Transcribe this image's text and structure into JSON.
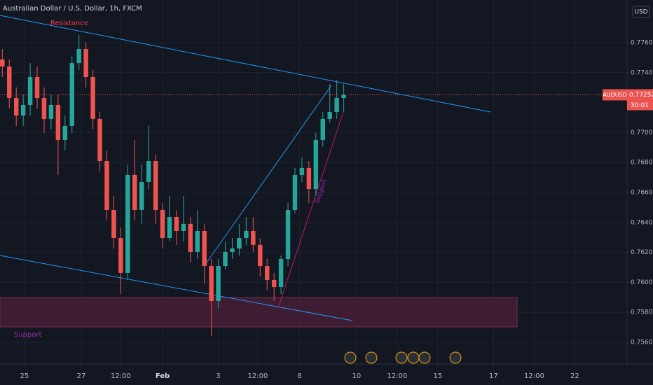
{
  "chart_data": {
    "type": "candlestick",
    "title": "Australian Dollar / U.S. Dollar, 1h, FXCM",
    "currency": "USD",
    "symbol": "AUDUSD",
    "last_price": 0.77252,
    "countdown": "30:01",
    "annotations": [
      "Resistance",
      "Support",
      "Support"
    ],
    "up_color": "#26a69a",
    "down_color": "#ef5350",
    "grid": true,
    "xlim": [
      0,
      540
    ],
    "ylim": [
      0.75455,
      0.77885
    ],
    "xticks": [
      {
        "value": 21,
        "label": "25"
      },
      {
        "value": 70,
        "label": "27"
      },
      {
        "value": 104,
        "label": "12:00"
      },
      {
        "value": 140,
        "label": "Feb"
      },
      {
        "value": 188,
        "label": "3"
      },
      {
        "value": 222,
        "label": "12:00"
      },
      {
        "value": 258,
        "label": "8"
      },
      {
        "value": 307,
        "label": "10"
      },
      {
        "value": 342,
        "label": "12:00"
      },
      {
        "value": 377,
        "label": "15"
      },
      {
        "value": 425,
        "label": "17"
      },
      {
        "value": 460,
        "label": "12:00"
      },
      {
        "value": 495,
        "label": "22"
      }
    ],
    "yticks": [
      {
        "value": 0.776,
        "label": "0.77600"
      },
      {
        "value": 0.774,
        "label": "0.77400"
      },
      {
        "value": 0.77,
        "label": "0.77000"
      },
      {
        "value": 0.768,
        "label": "0.76800"
      },
      {
        "value": 0.766,
        "label": "0.76600"
      },
      {
        "value": 0.764,
        "label": "0.76400"
      },
      {
        "value": 0.762,
        "label": "0.76200"
      },
      {
        "value": 0.76,
        "label": "0.76000"
      },
      {
        "value": 0.758,
        "label": "0.75800"
      },
      {
        "value": 0.756,
        "label": "0.75600"
      }
    ],
    "x": [
      2,
      8,
      14,
      20,
      26,
      32,
      38,
      44,
      50,
      56,
      62,
      68,
      74,
      80,
      86,
      92,
      98,
      104,
      110,
      116,
      122,
      128,
      134,
      140,
      146,
      152,
      158,
      164,
      170,
      176,
      182,
      188,
      194,
      200,
      206,
      212,
      218,
      224,
      230,
      236,
      242,
      248,
      254,
      260,
      266,
      272,
      278,
      284,
      290,
      296
    ],
    "open": [
      0.77488,
      0.77441,
      0.77231,
      0.77114,
      0.77184,
      0.77371,
      0.77231,
      0.77091,
      0.77184,
      0.7695,
      0.77044,
      0.77464,
      0.77558,
      0.77371,
      0.77091,
      0.7681,
      0.76483,
      0.76296,
      0.76063,
      0.76717,
      0.76483,
      0.7667,
      0.7681,
      0.76483,
      0.76296,
      0.76436,
      0.76343,
      0.7639,
      0.76203,
      0.76343,
      0.76109,
      0.75876,
      0.76109,
      0.76203,
      0.76226,
      0.76296,
      0.76343,
      0.7625,
      0.76109,
      0.76016,
      0.75969,
      0.76156,
      0.76483,
      0.76717,
      0.76764,
      0.76623,
      0.7695,
      0.77091,
      0.77137,
      0.77231
    ],
    "high": [
      0.77558,
      0.77488,
      0.77301,
      0.77254,
      0.77464,
      0.77441,
      0.77301,
      0.77254,
      0.77254,
      0.77114,
      0.77511,
      0.77651,
      0.77605,
      0.77418,
      0.77137,
      0.7688,
      0.76577,
      0.76366,
      0.76787,
      0.7695,
      0.76787,
      0.77044,
      0.76857,
      0.7653,
      0.76577,
      0.76483,
      0.76577,
      0.76436,
      0.76483,
      0.7639,
      0.76156,
      0.76156,
      0.76273,
      0.76296,
      0.7639,
      0.76436,
      0.76436,
      0.76296,
      0.76156,
      0.76063,
      0.76179,
      0.7653,
      0.76764,
      0.76834,
      0.7681,
      0.76997,
      0.77137,
      0.77324,
      0.7735,
      0.77324
    ],
    "low": [
      0.77371,
      0.77161,
      0.77044,
      0.77044,
      0.77114,
      0.77161,
      0.76997,
      0.77021,
      0.76717,
      0.7688,
      0.76997,
      0.77418,
      0.77301,
      0.77021,
      0.7674,
      0.76413,
      0.76226,
      0.75922,
      0.76016,
      0.76413,
      0.7639,
      0.76623,
      0.7639,
      0.76226,
      0.76273,
      0.7625,
      0.76273,
      0.76133,
      0.76156,
      0.75992,
      0.75642,
      0.75829,
      0.76086,
      0.76156,
      0.76179,
      0.7625,
      0.76203,
      0.76039,
      0.75946,
      0.75876,
      0.75922,
      0.76109,
      0.7646,
      0.7667,
      0.7653,
      0.76577,
      0.76904,
      0.77067,
      0.77091,
      0.77137
    ],
    "close": [
      0.77441,
      0.77231,
      0.77114,
      0.77184,
      0.77371,
      0.77231,
      0.77091,
      0.77184,
      0.7695,
      0.77044,
      0.77464,
      0.77558,
      0.77371,
      0.77091,
      0.7681,
      0.76483,
      0.76296,
      0.76063,
      0.76717,
      0.76483,
      0.7667,
      0.7681,
      0.76483,
      0.76296,
      0.76436,
      0.76343,
      0.7639,
      0.76203,
      0.76343,
      0.76109,
      0.75876,
      0.76109,
      0.76203,
      0.76226,
      0.76296,
      0.76343,
      0.7625,
      0.76109,
      0.76016,
      0.75969,
      0.76156,
      0.76483,
      0.76717,
      0.76764,
      0.76623,
      0.7695,
      0.77091,
      0.77137,
      0.77231,
      0.77252
    ]
  }
}
